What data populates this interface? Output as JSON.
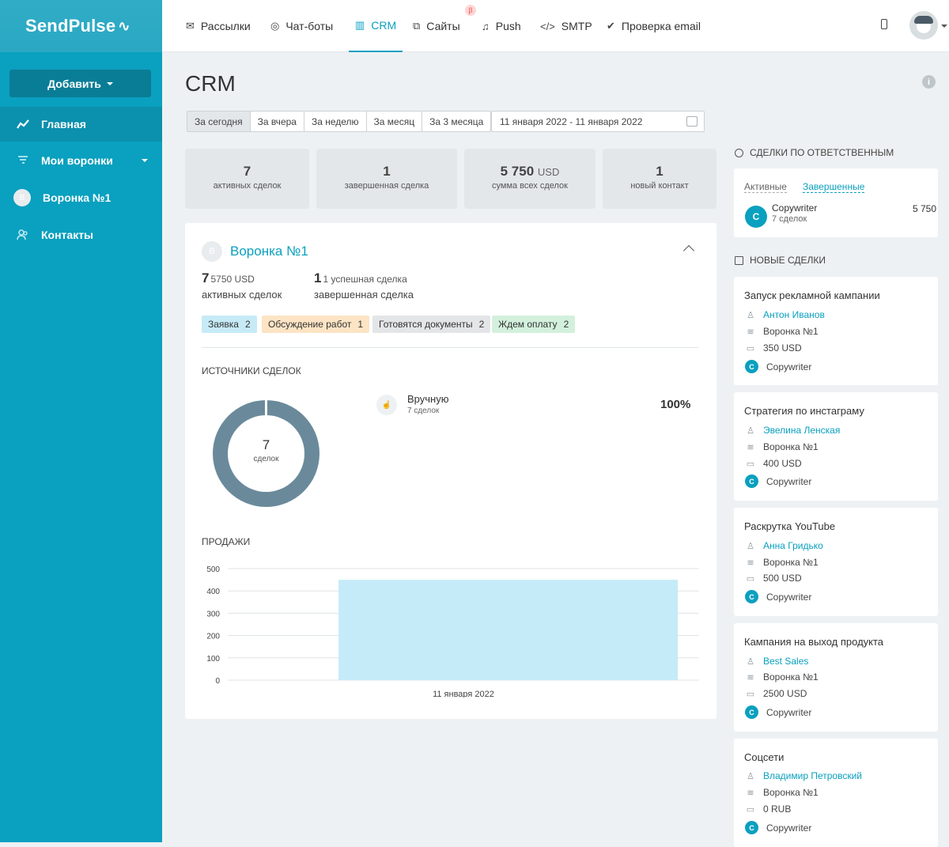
{
  "app": {
    "logo": "SendPulse"
  },
  "sidebar": {
    "add_button": "Добавить",
    "items": [
      {
        "label": "Главная",
        "icon": "chart-line-icon",
        "active": true
      },
      {
        "label": "Мои воронки",
        "icon": "funnel-icon"
      },
      {
        "label": "Воронка №1",
        "avatar": "В"
      },
      {
        "label": "Контакты",
        "icon": "contacts-icon"
      }
    ]
  },
  "topnav": {
    "items": [
      {
        "label": "Рассылки",
        "icon": "mail-icon"
      },
      {
        "label": "Чат-боты",
        "icon": "chat-icon"
      },
      {
        "label": "CRM",
        "icon": "crm-icon",
        "active": true
      },
      {
        "label": "Сайты",
        "icon": "sites-icon",
        "badge": "β"
      },
      {
        "label": "Push",
        "icon": "bell-icon"
      },
      {
        "label": "SMTP",
        "icon": "code-icon"
      },
      {
        "label": "Проверка email",
        "icon": "check-icon"
      }
    ]
  },
  "page": {
    "title": "CRM"
  },
  "periods": [
    "За сегодня",
    "За вчера",
    "За неделю",
    "За месяц",
    "За 3 месяца"
  ],
  "date_range": "11 января 2022 - 11 января 2022",
  "stats": [
    {
      "value": "7",
      "unit": "",
      "label": "активных сделок"
    },
    {
      "value": "1",
      "unit": "",
      "label": "завершенная сделка"
    },
    {
      "value": "5 750",
      "unit": "USD",
      "label": "сумма всех сделок"
    },
    {
      "value": "1",
      "unit": "",
      "label": "новый контакт"
    }
  ],
  "funnel": {
    "avatar": "В",
    "title": "Воронка №1",
    "active_count": "7",
    "active_sum": "5750 USD",
    "active_label": "активных сделок",
    "done_count": "1",
    "done_note": "1 успешная сделка",
    "done_label": "завершенная сделка",
    "stages": [
      {
        "name": "Заявка",
        "count": "2",
        "color": "#c6ebf6"
      },
      {
        "name": "Обсуждение работ",
        "count": "1",
        "color": "#fde4c4"
      },
      {
        "name": "Готовятся документы",
        "count": "2",
        "color": "#e3e5e7"
      },
      {
        "name": "Ждем оплату",
        "count": "2",
        "color": "#d3f0dc"
      }
    ],
    "sources_title": "ИСТОЧНИКИ СДЕЛОК",
    "donut_value": "7",
    "donut_label": "сделок",
    "source": {
      "name": "Вручную",
      "count": "7 сделок",
      "percent": "100%"
    },
    "sales_title": "ПРОДАЖИ"
  },
  "chart_data": {
    "type": "bar",
    "categories": [
      "11 января 2022"
    ],
    "values": [
      450
    ],
    "ylim": [
      0,
      500
    ],
    "yticks": [
      0,
      100,
      200,
      300,
      400,
      500
    ],
    "grid": true,
    "bar_color": "#c6ebf8"
  },
  "responsible": {
    "title": "СДЕЛКИ ПО ОТВЕТСТВЕННЫМ",
    "tabs": [
      "Активные",
      "Завершенные"
    ],
    "person": {
      "avatar": "C",
      "name": "Copywriter",
      "deals": "7 сделок",
      "sum": "5 750"
    }
  },
  "new_deals": {
    "title": "НОВЫЕ СДЕЛКИ",
    "items": [
      {
        "title": "Запуск рекламной кампании",
        "contact": "Антон Иванов",
        "funnel": "Воронка №1",
        "amount": "350 USD",
        "owner": "Copywriter"
      },
      {
        "title": "Стратегия по инстаграму",
        "contact": "Эвелина Ленская",
        "funnel": "Воронка №1",
        "amount": "400 USD",
        "owner": "Copywriter"
      },
      {
        "title": "Раскрутка YouTube",
        "contact": "Анна Гридько",
        "funnel": "Воронка №1",
        "amount": "500 USD",
        "owner": "Copywriter"
      },
      {
        "title": "Кампания на выход продукта",
        "contact": "Best Sales",
        "funnel": "Воронка №1",
        "amount": "2500 USD",
        "owner": "Copywriter"
      },
      {
        "title": "Соцсети",
        "contact": "Владимир Петровский",
        "funnel": "Воронка №1",
        "amount": "0 RUB",
        "owner": "Copywriter"
      }
    ]
  }
}
